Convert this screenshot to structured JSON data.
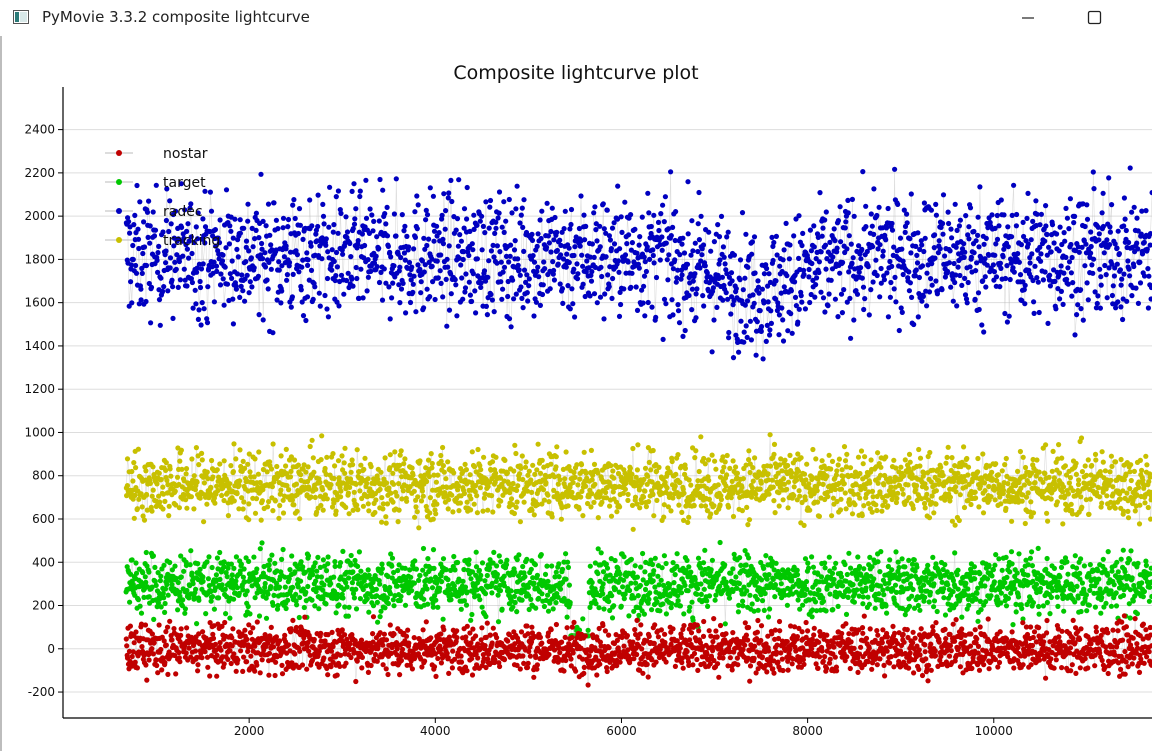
{
  "window": {
    "title": "PyMovie 3.3.2 composite lightcurve",
    "minimize_label": "—",
    "maximize_label": "☐"
  },
  "colors": {
    "nostar": "#c00000",
    "target": "#00c800",
    "radec": "#0000c0",
    "tracking": "#c8c000",
    "grid": "#dddddd",
    "axis": "#000000"
  },
  "chart_data": {
    "type": "scatter",
    "title": "Composite lightcurve plot",
    "xlabel": "",
    "ylabel": "",
    "xlim": [
      0,
      11700
    ],
    "ylim": [
      -320,
      2560
    ],
    "x_ticks": [
      2000,
      4000,
      6000,
      8000,
      10000
    ],
    "y_ticks": [
      -200,
      0,
      200,
      400,
      600,
      800,
      1000,
      1200,
      1400,
      1600,
      1800,
      2000,
      2200,
      2400
    ],
    "grid": true,
    "legend_position": "top-left",
    "x_range": [
      680,
      11700
    ],
    "series": [
      {
        "name": "nostar",
        "color": "#c00000",
        "mean": 0,
        "noise": 55,
        "min": -210,
        "max": 210
      },
      {
        "name": "target",
        "color": "#00c800",
        "mean": 300,
        "noise": 70,
        "min": 60,
        "max": 590,
        "dip": {
          "start": 5450,
          "end": 5650,
          "mean": -20
        }
      },
      {
        "name": "radec",
        "color": "#0000c0",
        "mean": 1820,
        "noise": 140,
        "min": 1250,
        "max": 2430,
        "trend_low": {
          "center": 7450,
          "depth": 150,
          "width": 700
        }
      },
      {
        "name": "tracking",
        "color": "#c8c000",
        "mean": 760,
        "noise": 75,
        "min": 480,
        "max": 1090
      }
    ]
  }
}
